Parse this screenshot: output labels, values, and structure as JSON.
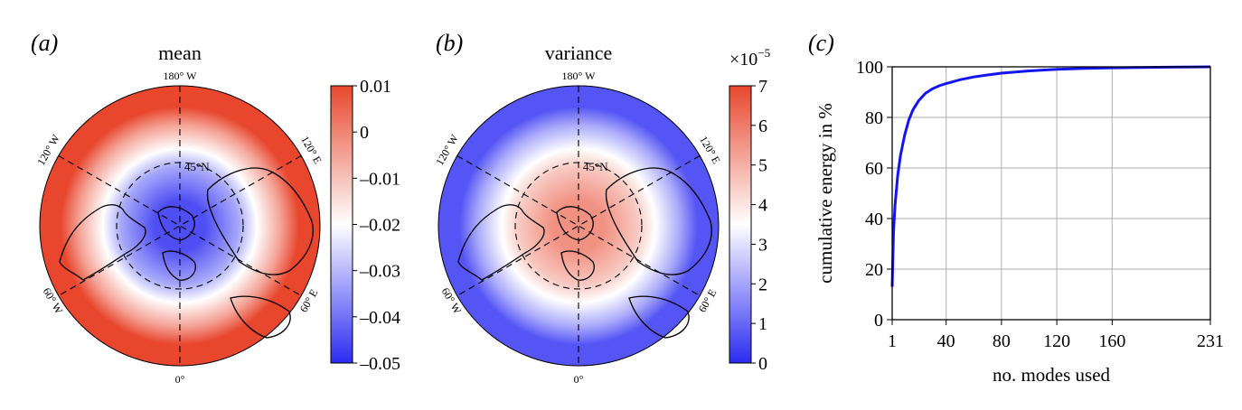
{
  "colors": {
    "negative": "#2b2bf2",
    "neutral": "#ffffff",
    "positive": "#e8472e",
    "line": "#1414f0",
    "grid": "#bdbdbd",
    "land": "#000000"
  },
  "chart_data": [
    {
      "type": "heatmap",
      "projection": "polar-stereographic-north",
      "panel_label": "(a)",
      "title": "mean",
      "map_labels": {
        "top": "180° W",
        "bottom": "0°",
        "upper_left": "120° W",
        "upper_right": "120° E",
        "lower_left": "60° W",
        "lower_right": "60° E",
        "latitude": "45°N"
      },
      "colorbar": {
        "ticks": [
          "0.01",
          "0",
          "–0.01",
          "–0.02",
          "–0.03",
          "–0.04",
          "–0.05"
        ],
        "range": [
          -0.05,
          0.01
        ],
        "exponent_label": "",
        "colormap": "bwr"
      },
      "field": {
        "pole_value": -0.045,
        "min_value": -0.05,
        "max_value": 0.01,
        "description": "negative over the pole, rising to positive at low latitudes"
      }
    },
    {
      "type": "heatmap",
      "projection": "polar-stereographic-north",
      "panel_label": "(b)",
      "title": "variance",
      "map_labels": {
        "top": "180° W",
        "bottom": "0°",
        "upper_left": "120° W",
        "upper_right": "120° E",
        "lower_left": "60° W",
        "lower_right": "60° E",
        "latitude": "45°N"
      },
      "colorbar": {
        "ticks": [
          "7",
          "6",
          "5",
          "4",
          "3",
          "2",
          "1",
          "0"
        ],
        "range": [
          0,
          7
        ],
        "exponent_label": "×10",
        "exponent_power": "−5",
        "colormap": "bwr"
      },
      "field": {
        "pole_value": 5.6,
        "min_value": 0,
        "max_value": 7,
        "description": "high over the pole, low toward lower latitudes"
      }
    },
    {
      "type": "line",
      "panel_label": "(c)",
      "title": "",
      "xlabel": "no. modes used",
      "ylabel": "cumulative energy in %",
      "xlim": [
        1,
        231
      ],
      "ylim": [
        0,
        100
      ],
      "x_ticks": [
        1,
        40,
        80,
        120,
        160,
        231
      ],
      "y_ticks": [
        0,
        20,
        40,
        60,
        80,
        100
      ],
      "grid": true,
      "series": [
        {
          "x": [
            1,
            2,
            3,
            5,
            7,
            10,
            13,
            16,
            20,
            25,
            30,
            35,
            40,
            50,
            60,
            70,
            80,
            100,
            120,
            140,
            160,
            180,
            200,
            231
          ],
          "y": [
            13,
            35,
            45,
            57,
            65,
            73,
            79,
            83,
            86.5,
            89.5,
            91.3,
            92.5,
            93.4,
            94.9,
            96,
            96.8,
            97.5,
            98.4,
            99,
            99.4,
            99.6,
            99.75,
            99.85,
            100
          ]
        }
      ]
    }
  ]
}
